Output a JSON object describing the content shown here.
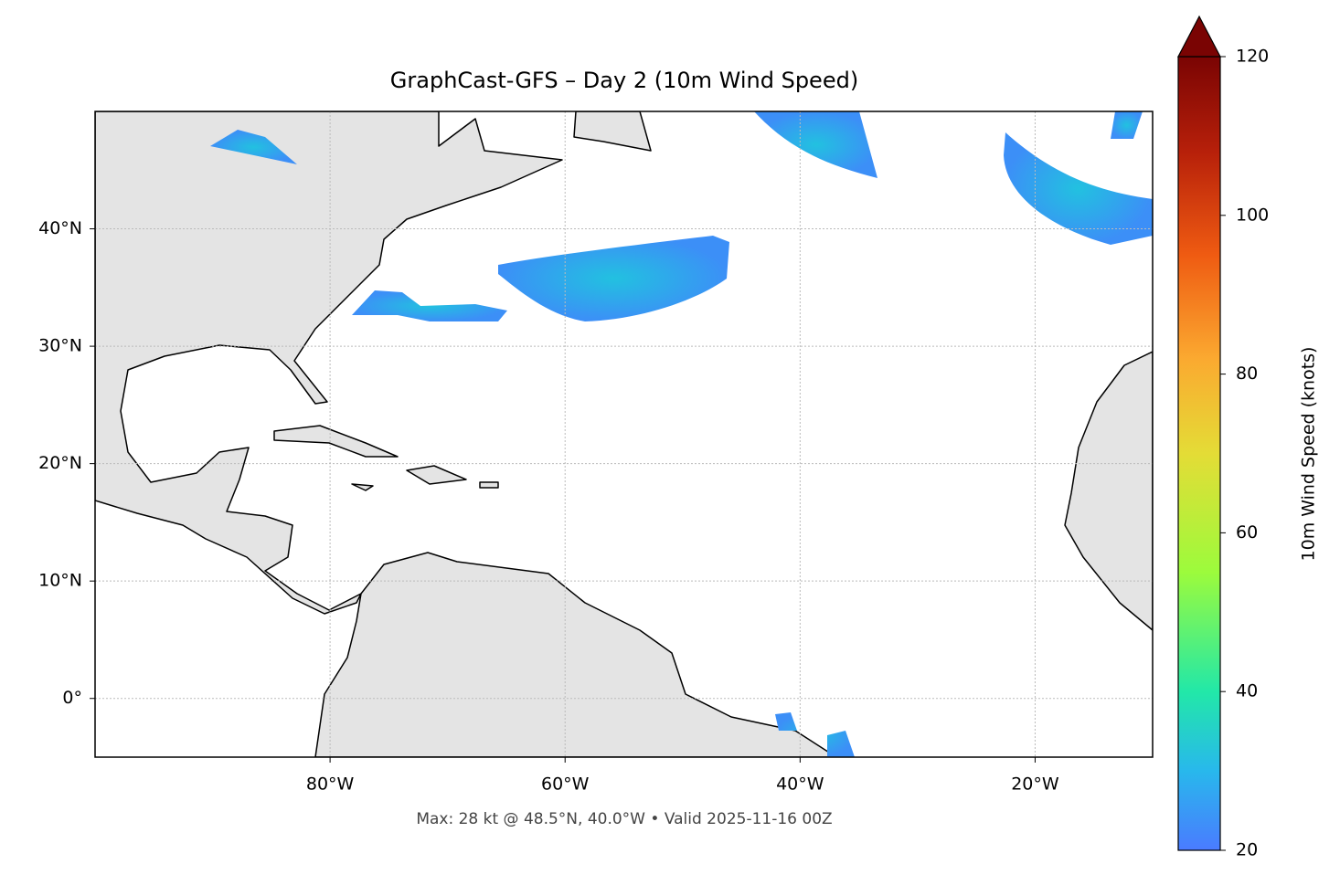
{
  "chart_data": {
    "type": "map",
    "title": "GraphCast-GFS – Day 2 (10m Wind Speed)",
    "footer": "Max: 28 kt @ 48.5°N, 40.0°W • Valid 2025-11-16 00Z",
    "xlim": [
      -100,
      -10
    ],
    "ylim": [
      -5,
      50
    ],
    "xticks": [
      {
        "value": -80,
        "label": "80°W"
      },
      {
        "value": -60,
        "label": "60°W"
      },
      {
        "value": -40,
        "label": "40°W"
      },
      {
        "value": -20,
        "label": "20°W"
      }
    ],
    "yticks": [
      {
        "value": 0,
        "label": "0°"
      },
      {
        "value": 10,
        "label": "10°N"
      },
      {
        "value": 20,
        "label": "20°N"
      },
      {
        "value": 30,
        "label": "30°N"
      },
      {
        "value": 40,
        "label": "40°N"
      }
    ],
    "grid": true,
    "colorbar": {
      "label": "10m Wind Speed (knots)",
      "lim": [
        20,
        120
      ],
      "ticks": [
        20,
        40,
        60,
        80,
        100,
        120
      ]
    }
  }
}
